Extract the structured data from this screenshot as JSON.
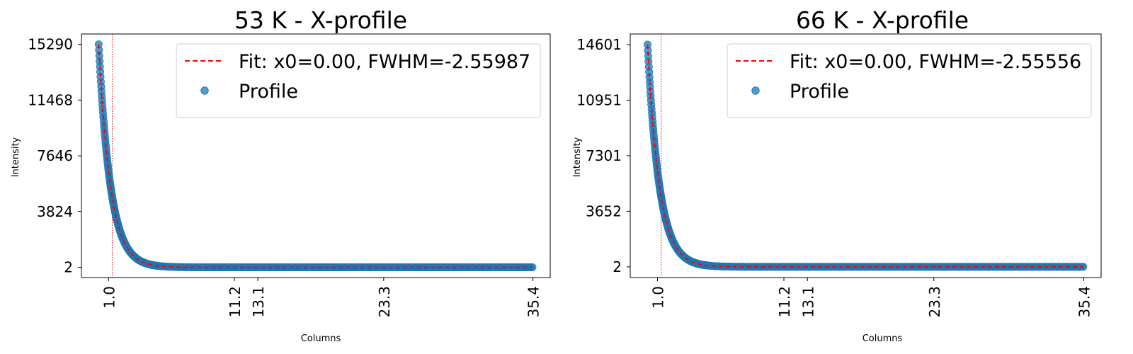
{
  "chart_data": [
    {
      "type": "scatter",
      "title": "53 K - X-profile",
      "xlabel": "Columns",
      "ylabel": "Intensity",
      "xlim": [
        -1.2,
        36.8
      ],
      "ylim": [
        -700,
        16000
      ],
      "xticks": [
        1.0,
        11.2,
        13.1,
        23.3,
        35.4
      ],
      "xtick_labels": [
        "1.0",
        "11.2",
        "13.1",
        "23.3",
        "35.4"
      ],
      "yticks": [
        2,
        3824,
        7646,
        11468,
        15290
      ],
      "ytick_labels": [
        "2",
        "3824",
        "7646",
        "11468",
        "15290"
      ],
      "vlines": [
        -1.2,
        1.3
      ],
      "grid": false,
      "legend_position": "upper-right",
      "series": [
        {
          "name": "Fit: x0=0.00, FWHM=-2.55987",
          "kind": "fit",
          "color": "#ff0000",
          "x0": 0.0,
          "peak": 15290,
          "decay": 0.95,
          "baseline": 2
        },
        {
          "name": "Profile",
          "kind": "scatter",
          "color": "#1f77b4",
          "x_range": [
            0.2,
            35.4
          ],
          "peak": 15290,
          "decay": 0.95,
          "baseline": 2
        }
      ]
    },
    {
      "type": "scatter",
      "title": "66 K - X-profile",
      "xlabel": "Columns",
      "ylabel": "Intensity",
      "xlim": [
        -1.2,
        36.8
      ],
      "ylim": [
        -700,
        15300
      ],
      "xticks": [
        1.0,
        11.2,
        13.1,
        23.3,
        35.4
      ],
      "xtick_labels": [
        "1.0",
        "11.2",
        "13.1",
        "23.3",
        "35.4"
      ],
      "yticks": [
        2,
        3652,
        7301,
        10951,
        14601
      ],
      "ytick_labels": [
        "2",
        "3652",
        "7301",
        "10951",
        "14601"
      ],
      "vlines": [
        -1.2,
        1.3
      ],
      "grid": false,
      "legend_position": "upper-right",
      "series": [
        {
          "name": "Fit: x0=0.00, FWHM=-2.55556",
          "kind": "fit",
          "color": "#ff0000",
          "x0": 0.0,
          "peak": 14601,
          "decay": 0.95,
          "baseline": 2
        },
        {
          "name": "Profile",
          "kind": "scatter",
          "color": "#1f77b4",
          "x_range": [
            0.2,
            35.4
          ],
          "peak": 14601,
          "decay": 0.95,
          "baseline": 2
        }
      ]
    }
  ]
}
